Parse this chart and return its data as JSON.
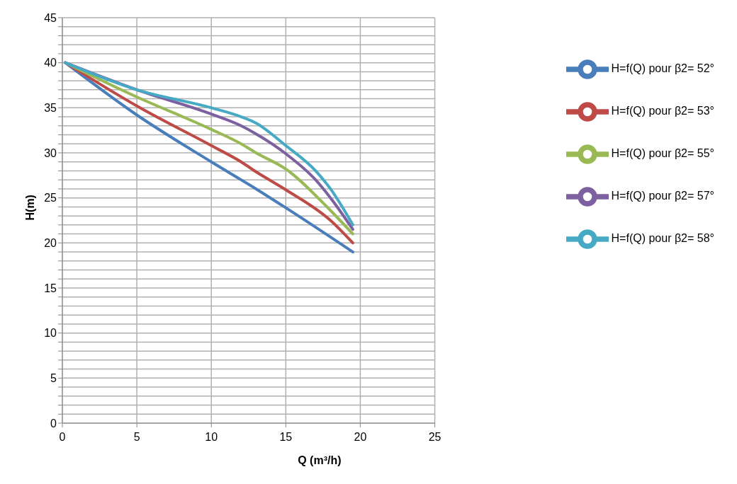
{
  "chart_data": {
    "type": "line",
    "xlabel": "Q (m³/h)",
    "ylabel": "H(m)",
    "xlim": [
      0,
      25
    ],
    "xticks": [
      0,
      5,
      10,
      15,
      20,
      25
    ],
    "ylim": [
      0,
      45
    ],
    "yticks": [
      0,
      {
        "value": 1,
        "label": null
      },
      {
        "value": 2,
        "label": null
      },
      {
        "value": 3,
        "label": null
      },
      {
        "value": 4,
        "label": null
      },
      5,
      {
        "value": 6,
        "label": null
      },
      {
        "value": 7,
        "label": null
      },
      {
        "value": 8,
        "label": null
      },
      {
        "value": 9,
        "label": null
      },
      10,
      {
        "value": 11,
        "label": null
      },
      {
        "value": 12,
        "label": null
      },
      {
        "value": 13,
        "label": null
      },
      {
        "value": 14,
        "label": null
      },
      15,
      {
        "value": 16,
        "label": null
      },
      {
        "value": 17,
        "label": null
      },
      {
        "value": 18,
        "label": null
      },
      {
        "value": 19,
        "label": null
      },
      20,
      {
        "value": 21,
        "label": null
      },
      {
        "value": 22,
        "label": null
      },
      {
        "value": 23,
        "label": null
      },
      {
        "value": 24,
        "label": null
      },
      25,
      {
        "value": 26,
        "label": null
      },
      {
        "value": 27,
        "label": null
      },
      {
        "value": 28,
        "label": null
      },
      {
        "value": 29,
        "label": null
      },
      30,
      {
        "value": 31,
        "label": null
      },
      {
        "value": 32,
        "label": null
      },
      {
        "value": 33,
        "label": null
      },
      {
        "value": 34,
        "label": null
      },
      35,
      {
        "value": 36,
        "label": null
      },
      {
        "value": 37,
        "label": null
      },
      {
        "value": 38,
        "label": null
      },
      {
        "value": 39,
        "label": null
      },
      40,
      {
        "value": 41,
        "label": null
      },
      {
        "value": 42,
        "label": null
      },
      {
        "value": 43,
        "label": null
      },
      {
        "value": 44,
        "label": null
      },
      45
    ],
    "grid": true,
    "legend": "top right",
    "series": [
      {
        "name": "H=f(Q) pour β2= 52°",
        "color": "#4a7ebb",
        "x": [
          0.2,
          5,
          10,
          13,
          15,
          19.5
        ],
        "values": [
          40,
          34.2,
          29,
          26,
          23.9,
          19
        ]
      },
      {
        "name": "H=f(Q) pour β2= 53°",
        "color": "#be4b48",
        "x": [
          0.2,
          5,
          10,
          12,
          13,
          15,
          18,
          19.5
        ],
        "values": [
          40,
          35.2,
          30.8,
          29,
          27.9,
          25.9,
          22.5,
          20
        ]
      },
      {
        "name": "H=f(Q) pour β2= 55°",
        "color": "#98b954",
        "x": [
          0.2,
          5,
          10,
          12,
          13,
          15,
          18,
          19.5
        ],
        "values": [
          40,
          36.2,
          32.6,
          31,
          30,
          28.2,
          23.6,
          21
        ]
      },
      {
        "name": "H=f(Q) pour β2= 57°",
        "color": "#7d60a0",
        "x": [
          0.2,
          5,
          10,
          12,
          13,
          15,
          17,
          18,
          19.5
        ],
        "values": [
          40,
          37,
          34.3,
          33,
          32.1,
          29.9,
          27,
          25,
          21.5
        ]
      },
      {
        "name": "H=f(Q) pour β2= 58°",
        "color": "#46aac5",
        "x": [
          0.2,
          5,
          10,
          12,
          13,
          15,
          17,
          18,
          19.5
        ],
        "values": [
          40,
          37,
          35,
          34,
          33.3,
          30.8,
          28,
          26,
          22
        ]
      }
    ]
  }
}
